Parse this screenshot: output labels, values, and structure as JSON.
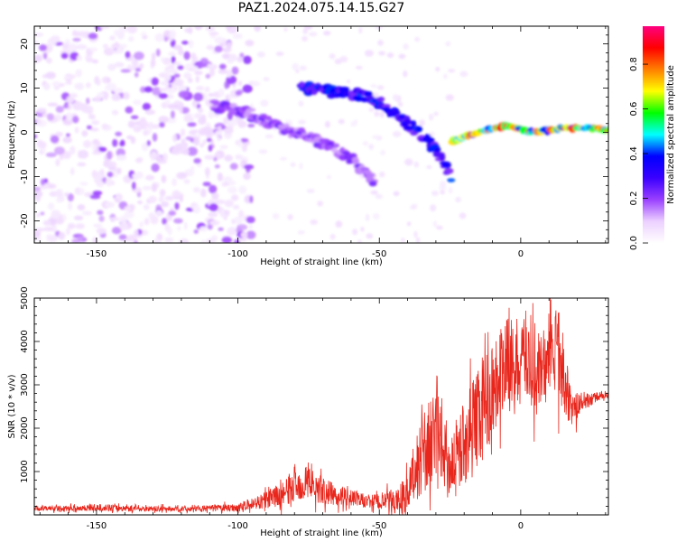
{
  "title": "PAZ1.2024.075.14.15.G27",
  "chart_data": [
    {
      "type": "heatmap",
      "xlabel": "Height of straight line (km)",
      "ylabel": "Frequency (Hz)",
      "xlim": [
        -172,
        31
      ],
      "ylim": [
        -25,
        24
      ],
      "xticks": [
        -150,
        -100,
        -50,
        0
      ],
      "yticks": [
        -20,
        -10,
        0,
        10,
        20
      ],
      "colorbar": {
        "label": "Normalized spectral amplitude",
        "range": [
          0.0,
          0.97
        ],
        "ticks": [
          0.0,
          0.2,
          0.4,
          0.6,
          0.8
        ],
        "colormap": [
          "#ffffff",
          "#ecd0ff",
          "#9a40ff",
          "#3a00ff",
          "#0000ff",
          "#00ffff",
          "#00ff00",
          "#ffff00",
          "#ff7f00",
          "#ff0000",
          "#ff0080"
        ]
      },
      "features": [
        {
          "name": "noise background",
          "x_range": [
            -172,
            -95
          ],
          "freq_range": [
            -25,
            24
          ],
          "amplitude": 0.05
        },
        {
          "name": "main descending trace",
          "x": [
            -108,
            -95,
            -85,
            -75,
            -65,
            -58,
            -52
          ],
          "freq": [
            6,
            4,
            1,
            -1,
            -4,
            -7,
            -11
          ],
          "amplitude": 0.2
        },
        {
          "name": "upper branch",
          "x": [
            -78,
            -65,
            -57,
            -48,
            -42,
            -36,
            -30,
            -27,
            -25
          ],
          "freq": [
            10,
            9,
            8.5,
            6,
            3,
            0,
            -4,
            -7,
            -10
          ],
          "amplitude": 0.35
        },
        {
          "name": "flat tracking trace",
          "x": [
            -24,
            -15,
            -5,
            5,
            15,
            25,
            31
          ],
          "freq": [
            -2,
            0,
            1.5,
            0,
            1,
            1,
            0.5
          ],
          "amplitude": 0.7
        }
      ]
    },
    {
      "type": "line",
      "xlabel": "Height of straight line (km)",
      "ylabel": "SNR (10 * v/v)",
      "xlim": [
        -172,
        31
      ],
      "ylim": [
        0,
        5000
      ],
      "xticks": [
        -150,
        -100,
        -50,
        0
      ],
      "yticks": [
        1000,
        2000,
        3000,
        4000,
        5000
      ],
      "series_color": "#e8261c",
      "x": [
        -172,
        -160,
        -150,
        -140,
        -130,
        -120,
        -110,
        -100,
        -95,
        -90,
        -85,
        -80,
        -75,
        -70,
        -65,
        -60,
        -55,
        -50,
        -45,
        -40,
        -36,
        -32,
        -28,
        -25,
        -22,
        -18,
        -14,
        -10,
        -6,
        -2,
        2,
        6,
        10,
        14,
        18,
        22,
        26,
        31
      ],
      "y": [
        150,
        150,
        170,
        150,
        140,
        140,
        150,
        170,
        250,
        350,
        450,
        650,
        750,
        550,
        450,
        400,
        320,
        300,
        320,
        450,
        1300,
        1600,
        1700,
        1100,
        1500,
        1900,
        2400,
        2900,
        3400,
        3500,
        3700,
        3100,
        3700,
        3600,
        2400,
        2600,
        2700,
        2800
      ],
      "noise_envelope": [
        80,
        80,
        100,
        90,
        80,
        80,
        90,
        120,
        180,
        250,
        350,
        450,
        500,
        400,
        300,
        250,
        200,
        250,
        350,
        600,
        1100,
        1400,
        1300,
        900,
        1100,
        1400,
        1500,
        1400,
        1400,
        1300,
        1300,
        1200,
        1300,
        1300,
        500,
        300,
        150,
        100
      ]
    }
  ]
}
